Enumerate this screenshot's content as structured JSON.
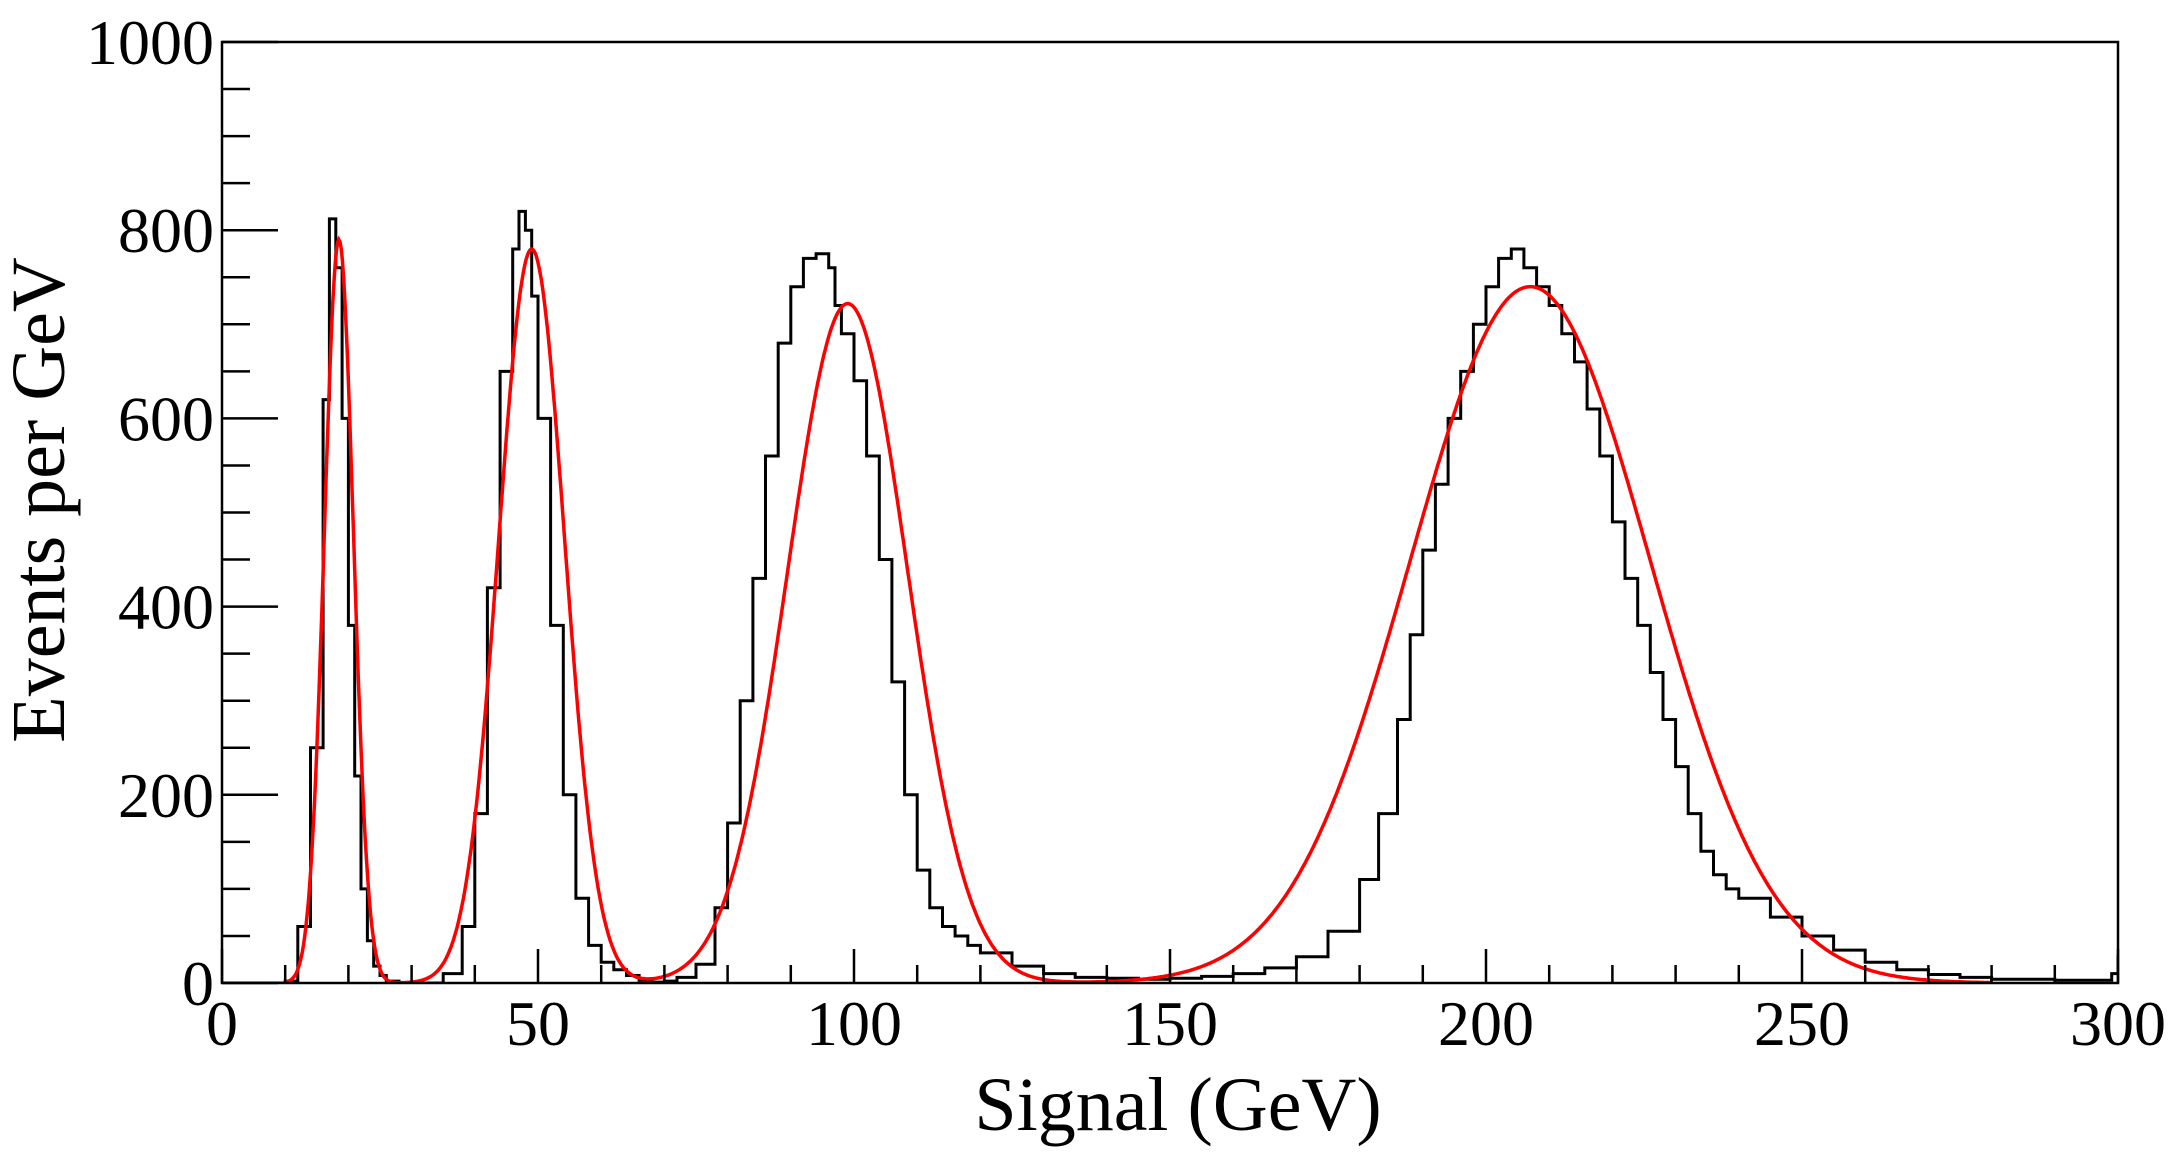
{
  "chart_data": {
    "type": "line",
    "title": "",
    "xlabel": "Signal (GeV)",
    "ylabel": "Events per GeV",
    "xlim": [
      0,
      300
    ],
    "ylim": [
      0,
      1000
    ],
    "grid": false,
    "legend": "none",
    "x_ticks": [
      0,
      50,
      100,
      150,
      200,
      250,
      300
    ],
    "x_tick_labels": [
      "0",
      "50",
      "100",
      "150",
      "200",
      "250",
      "300"
    ],
    "y_ticks": [
      0,
      200,
      400,
      600,
      800,
      1000
    ],
    "y_tick_labels": [
      "0",
      "200",
      "400",
      "600",
      "800",
      "1000"
    ],
    "colors": {
      "histogram": "#000000",
      "fit": "#ff0000",
      "frame": "#000000"
    },
    "series": [
      {
        "kind": "histogram",
        "color": "#000000",
        "x": [
          0,
          5,
          10,
          12,
          14,
          16,
          17,
          18,
          19,
          20,
          21,
          22,
          23,
          24,
          25,
          26,
          28,
          30,
          35,
          38,
          40,
          42,
          44,
          46,
          47,
          48,
          49,
          50,
          52,
          54,
          56,
          58,
          60,
          62,
          64,
          66,
          68,
          70,
          72,
          75,
          78,
          80,
          82,
          84,
          86,
          88,
          90,
          92,
          94,
          96,
          97,
          98,
          100,
          102,
          104,
          106,
          108,
          110,
          112,
          114,
          116,
          118,
          120,
          125,
          130,
          135,
          140,
          145,
          150,
          155,
          160,
          165,
          170,
          175,
          180,
          183,
          186,
          188,
          190,
          192,
          194,
          196,
          198,
          200,
          202,
          204,
          206,
          208,
          210,
          212,
          214,
          216,
          218,
          220,
          222,
          224,
          226,
          228,
          230,
          232,
          234,
          236,
          238,
          240,
          245,
          250,
          255,
          260,
          265,
          270,
          275,
          280,
          290,
          299,
          300
        ],
        "y": [
          0,
          0,
          2,
          60,
          250,
          620,
          812,
          760,
          600,
          380,
          220,
          100,
          45,
          18,
          8,
          2,
          0,
          0,
          10,
          60,
          180,
          420,
          650,
          780,
          820,
          800,
          730,
          600,
          380,
          200,
          90,
          40,
          22,
          14,
          8,
          3,
          1,
          2,
          6,
          20,
          80,
          170,
          300,
          430,
          560,
          680,
          740,
          770,
          775,
          760,
          720,
          690,
          640,
          560,
          450,
          320,
          200,
          120,
          80,
          60,
          50,
          40,
          32,
          18,
          10,
          6,
          5,
          4,
          5,
          7,
          10,
          16,
          28,
          55,
          110,
          180,
          280,
          370,
          460,
          530,
          600,
          650,
          700,
          740,
          770,
          780,
          760,
          740,
          720,
          690,
          660,
          610,
          560,
          490,
          430,
          380,
          330,
          280,
          230,
          180,
          140,
          115,
          100,
          90,
          70,
          50,
          35,
          22,
          14,
          9,
          6,
          4,
          3,
          10,
          30
        ]
      },
      {
        "kind": "fit",
        "name": "",
        "color": "#ff0000",
        "function": "sum of gaussians",
        "peaks": [
          {
            "mean": 18.5,
            "sigma": 2.3,
            "amplitude": 790
          },
          {
            "mean": 49,
            "sigma": 5.2,
            "amplitude": 780
          },
          {
            "mean": 99,
            "sigma": 9.5,
            "amplitude": 722
          },
          {
            "mean": 207,
            "sigma": 19,
            "amplitude": 740
          }
        ]
      }
    ]
  }
}
